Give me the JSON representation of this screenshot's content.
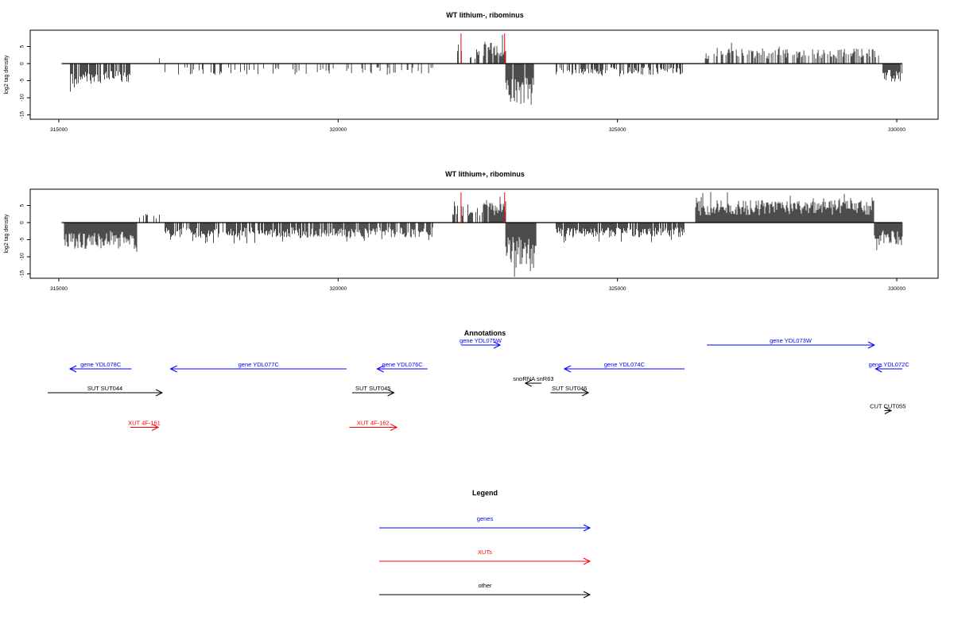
{
  "chart_data": [
    {
      "type": "bar",
      "title": "WT lithium-, ribominus",
      "ylabel": "log2 tag density",
      "xlabel": "",
      "x_ticks": [
        "315000",
        "320000",
        "325000",
        "330000"
      ],
      "y_ticks": [
        "5",
        "0",
        "-5",
        "-10",
        "-15"
      ],
      "xlim": [
        315000,
        330100
      ],
      "ylim": [
        -15,
        9
      ],
      "grid": false,
      "colors": {
        "bars": "#000000",
        "highlight": "#ff0000"
      },
      "highlight_x": [
        322200,
        322980
      ],
      "segments": [
        {
          "x0": 315180,
          "x1": 316300,
          "sign": -1,
          "amp": 5.5,
          "density": 0.8
        },
        {
          "x0": 316300,
          "x1": 316900,
          "sign": 1,
          "amp": 2.5,
          "density": 0.04
        },
        {
          "x0": 316900,
          "x1": 319200,
          "sign": -1,
          "amp": 3.0,
          "density": 0.25
        },
        {
          "x0": 319200,
          "x1": 321700,
          "sign": -1,
          "amp": 3.0,
          "density": 0.25
        },
        {
          "x0": 322050,
          "x1": 322600,
          "sign": 1,
          "amp": 4.0,
          "density": 0.3
        },
        {
          "x0": 322600,
          "x1": 323000,
          "sign": 1,
          "amp": 6.0,
          "density": 0.9
        },
        {
          "x0": 323000,
          "x1": 323500,
          "sign": -1,
          "amp": 11.0,
          "density": 0.95
        },
        {
          "x0": 323900,
          "x1": 326200,
          "sign": -1,
          "amp": 3.0,
          "density": 0.5
        },
        {
          "x0": 326500,
          "x1": 329700,
          "sign": 1,
          "amp": 4.0,
          "density": 0.45
        },
        {
          "x0": 329750,
          "x1": 330100,
          "sign": -1,
          "amp": 5.0,
          "density": 0.9
        }
      ]
    },
    {
      "type": "bar",
      "title": "WT lithium+, ribominus",
      "ylabel": "log2 tag density",
      "xlabel": "",
      "x_ticks": [
        "315000",
        "320000",
        "325000",
        "330000"
      ],
      "y_ticks": [
        "5",
        "0",
        "-5",
        "-10",
        "-15"
      ],
      "xlim": [
        315000,
        330100
      ],
      "ylim": [
        -15,
        9
      ],
      "grid": false,
      "colors": {
        "bars": "#000000",
        "highlight": "#ff0000"
      },
      "highlight_x": [
        322200,
        322980
      ],
      "segments": [
        {
          "x0": 315100,
          "x1": 316400,
          "sign": -1,
          "amp": 7.0,
          "density": 1.0
        },
        {
          "x0": 316400,
          "x1": 316900,
          "sign": 1,
          "amp": 3.0,
          "density": 0.25
        },
        {
          "x0": 316900,
          "x1": 319400,
          "sign": -1,
          "amp": 4.0,
          "density": 0.8
        },
        {
          "x0": 319400,
          "x1": 321700,
          "sign": -1,
          "amp": 4.0,
          "density": 0.8
        },
        {
          "x0": 322050,
          "x1": 322600,
          "sign": 1,
          "amp": 5.0,
          "density": 0.6
        },
        {
          "x0": 322600,
          "x1": 323000,
          "sign": 1,
          "amp": 6.0,
          "density": 0.9
        },
        {
          "x0": 323000,
          "x1": 323550,
          "sign": -1,
          "amp": 12.0,
          "density": 1.0
        },
        {
          "x0": 323900,
          "x1": 326200,
          "sign": -1,
          "amp": 4.0,
          "density": 0.85
        },
        {
          "x0": 326400,
          "x1": 329600,
          "sign": 1,
          "amp": 6.0,
          "density": 1.0
        },
        {
          "x0": 329600,
          "x1": 330100,
          "sign": -1,
          "amp": 6.0,
          "density": 1.0
        }
      ]
    }
  ],
  "annotations": {
    "title": "Annotations",
    "xlim": [
      315000,
      330100
    ],
    "features": [
      {
        "label": "gene YDL078C",
        "start": 316300,
        "end": 315200,
        "color": "#0000ff",
        "row": 0
      },
      {
        "label": "gene YDL077C",
        "start": 320150,
        "end": 317000,
        "color": "#0000ff",
        "row": 0
      },
      {
        "label": "gene YDL076C",
        "start": 321600,
        "end": 320700,
        "color": "#0000ff",
        "row": 0
      },
      {
        "label": "gene YDL075W",
        "start": 322200,
        "end": 322900,
        "color": "#0000ff",
        "row": -1
      },
      {
        "label": "gene YDL074C",
        "start": 326200,
        "end": 324050,
        "color": "#0000ff",
        "row": 0
      },
      {
        "label": "gene YDL073W",
        "start": 326600,
        "end": 329600,
        "color": "#0000ff",
        "row": -1
      },
      {
        "label": "gene YDL072C",
        "start": 330100,
        "end": 329620,
        "color": "#0000ff",
        "row": 0
      },
      {
        "label": "SUT SUT044",
        "start": 314800,
        "end": 316850,
        "color": "#000000",
        "row": 1
      },
      {
        "label": "SUT SUT045",
        "start": 320250,
        "end": 321000,
        "color": "#000000",
        "row": 1
      },
      {
        "label": "snoRNA snR63",
        "start": 323640,
        "end": 323350,
        "color": "#000000",
        "row": 0.6
      },
      {
        "label": "SUT SUT046",
        "start": 323800,
        "end": 324480,
        "color": "#000000",
        "row": 1
      },
      {
        "label": "CUT CUT055",
        "start": 329780,
        "end": 329900,
        "color": "#000000",
        "row": 1.75
      },
      {
        "label": "XUT 4F-161",
        "start": 316280,
        "end": 316780,
        "color": "#ff0000",
        "row": 2.45
      },
      {
        "label": "XUT 4F-162",
        "start": 320200,
        "end": 321050,
        "color": "#ff0000",
        "row": 2.45
      }
    ]
  },
  "legend": {
    "title": "Legend",
    "items": [
      {
        "label": "genes",
        "color": "#0000ff"
      },
      {
        "label": "XUTs",
        "color": "#ff0000"
      },
      {
        "label": "other",
        "color": "#000000"
      }
    ]
  }
}
